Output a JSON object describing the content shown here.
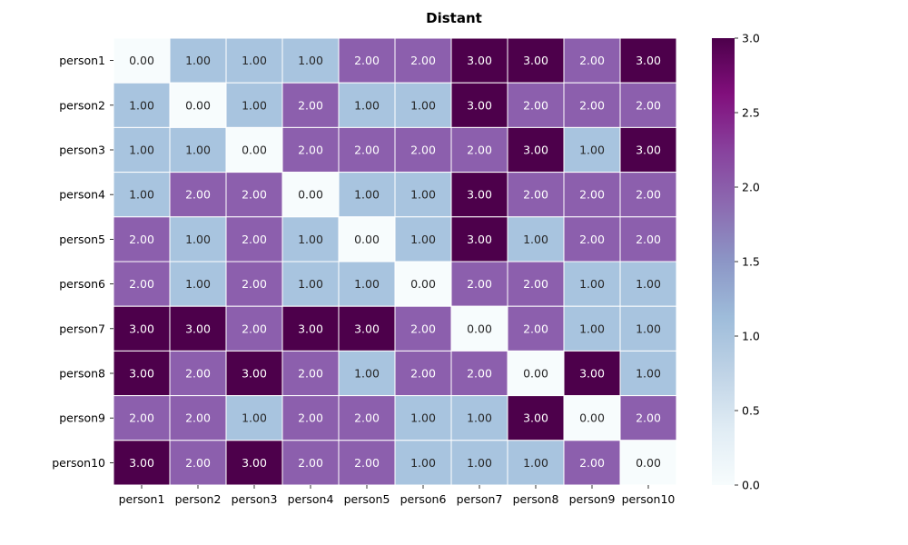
{
  "chart_data": {
    "type": "heatmap",
    "title": "Distant",
    "xlabel": "",
    "ylabel": "",
    "x_categories": [
      "person1",
      "person2",
      "person3",
      "person4",
      "person5",
      "person6",
      "person7",
      "person8",
      "person9",
      "person10"
    ],
    "y_categories": [
      "person1",
      "person2",
      "person3",
      "person4",
      "person5",
      "person6",
      "person7",
      "person8",
      "person9",
      "person10"
    ],
    "values": [
      [
        0,
        1,
        1,
        1,
        2,
        2,
        3,
        3,
        2,
        3
      ],
      [
        1,
        0,
        1,
        2,
        1,
        1,
        3,
        2,
        2,
        2
      ],
      [
        1,
        1,
        0,
        2,
        2,
        2,
        2,
        3,
        1,
        3
      ],
      [
        1,
        2,
        2,
        0,
        1,
        1,
        3,
        2,
        2,
        2
      ],
      [
        2,
        1,
        2,
        1,
        0,
        1,
        3,
        1,
        2,
        2
      ],
      [
        2,
        1,
        2,
        1,
        1,
        0,
        2,
        2,
        1,
        1
      ],
      [
        3,
        3,
        2,
        3,
        3,
        2,
        0,
        2,
        1,
        1
      ],
      [
        3,
        2,
        3,
        2,
        1,
        2,
        2,
        0,
        3,
        1
      ],
      [
        2,
        2,
        1,
        2,
        2,
        1,
        1,
        3,
        0,
        2
      ],
      [
        3,
        2,
        3,
        2,
        2,
        1,
        1,
        1,
        2,
        0
      ]
    ],
    "value_format": "0.00",
    "colormap": "BuPu",
    "colorbar": {
      "min": 0,
      "max": 3,
      "ticks": [
        "0.0",
        "0.5",
        "1.0",
        "1.5",
        "2.0",
        "2.5",
        "3.0"
      ],
      "tick_values": [
        0,
        0.5,
        1,
        1.5,
        2,
        2.5,
        3
      ]
    },
    "colors": {
      "0": "#f7fcfd",
      "1": "#a8c4df",
      "2": "#8c5fad",
      "3": "#4d004b"
    }
  }
}
